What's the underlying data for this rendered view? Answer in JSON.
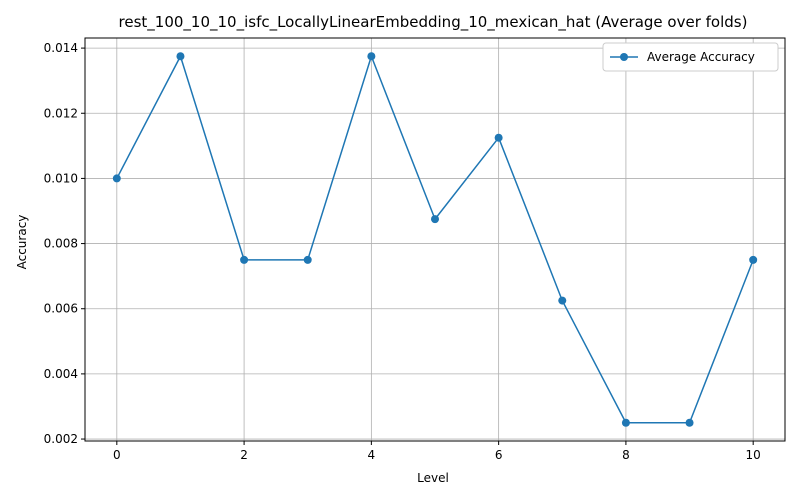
{
  "chart_data": {
    "type": "line",
    "title": "rest_100_10_10_isfc_LocallyLinearEmbedding_10_mexican_hat (Average over folds)",
    "xlabel": "Level",
    "ylabel": "Accuracy",
    "x": [
      0,
      1,
      2,
      3,
      4,
      5,
      6,
      7,
      8,
      9,
      10
    ],
    "series": [
      {
        "name": "Average Accuracy",
        "values": [
          0.01,
          0.01375,
          0.0075,
          0.0075,
          0.01375,
          0.00875,
          0.01125,
          0.00625,
          0.0025,
          0.0025,
          0.0075
        ],
        "color": "#1f77b4",
        "marker": "circle"
      }
    ],
    "xlim": [
      -0.5,
      10.5
    ],
    "ylim": [
      0.00194,
      0.01431
    ],
    "xticks": [
      0,
      2,
      4,
      6,
      8,
      10
    ],
    "xtick_labels": [
      "0",
      "2",
      "4",
      "6",
      "8",
      "10"
    ],
    "yticks": [
      0.002,
      0.004,
      0.006,
      0.008,
      0.01,
      0.012,
      0.014
    ],
    "ytick_labels": [
      "0.002",
      "0.004",
      "0.006",
      "0.008",
      "0.010",
      "0.012",
      "0.014"
    ],
    "grid": true,
    "grid_color": "#b0b0b0",
    "legend_position": "top-right"
  }
}
